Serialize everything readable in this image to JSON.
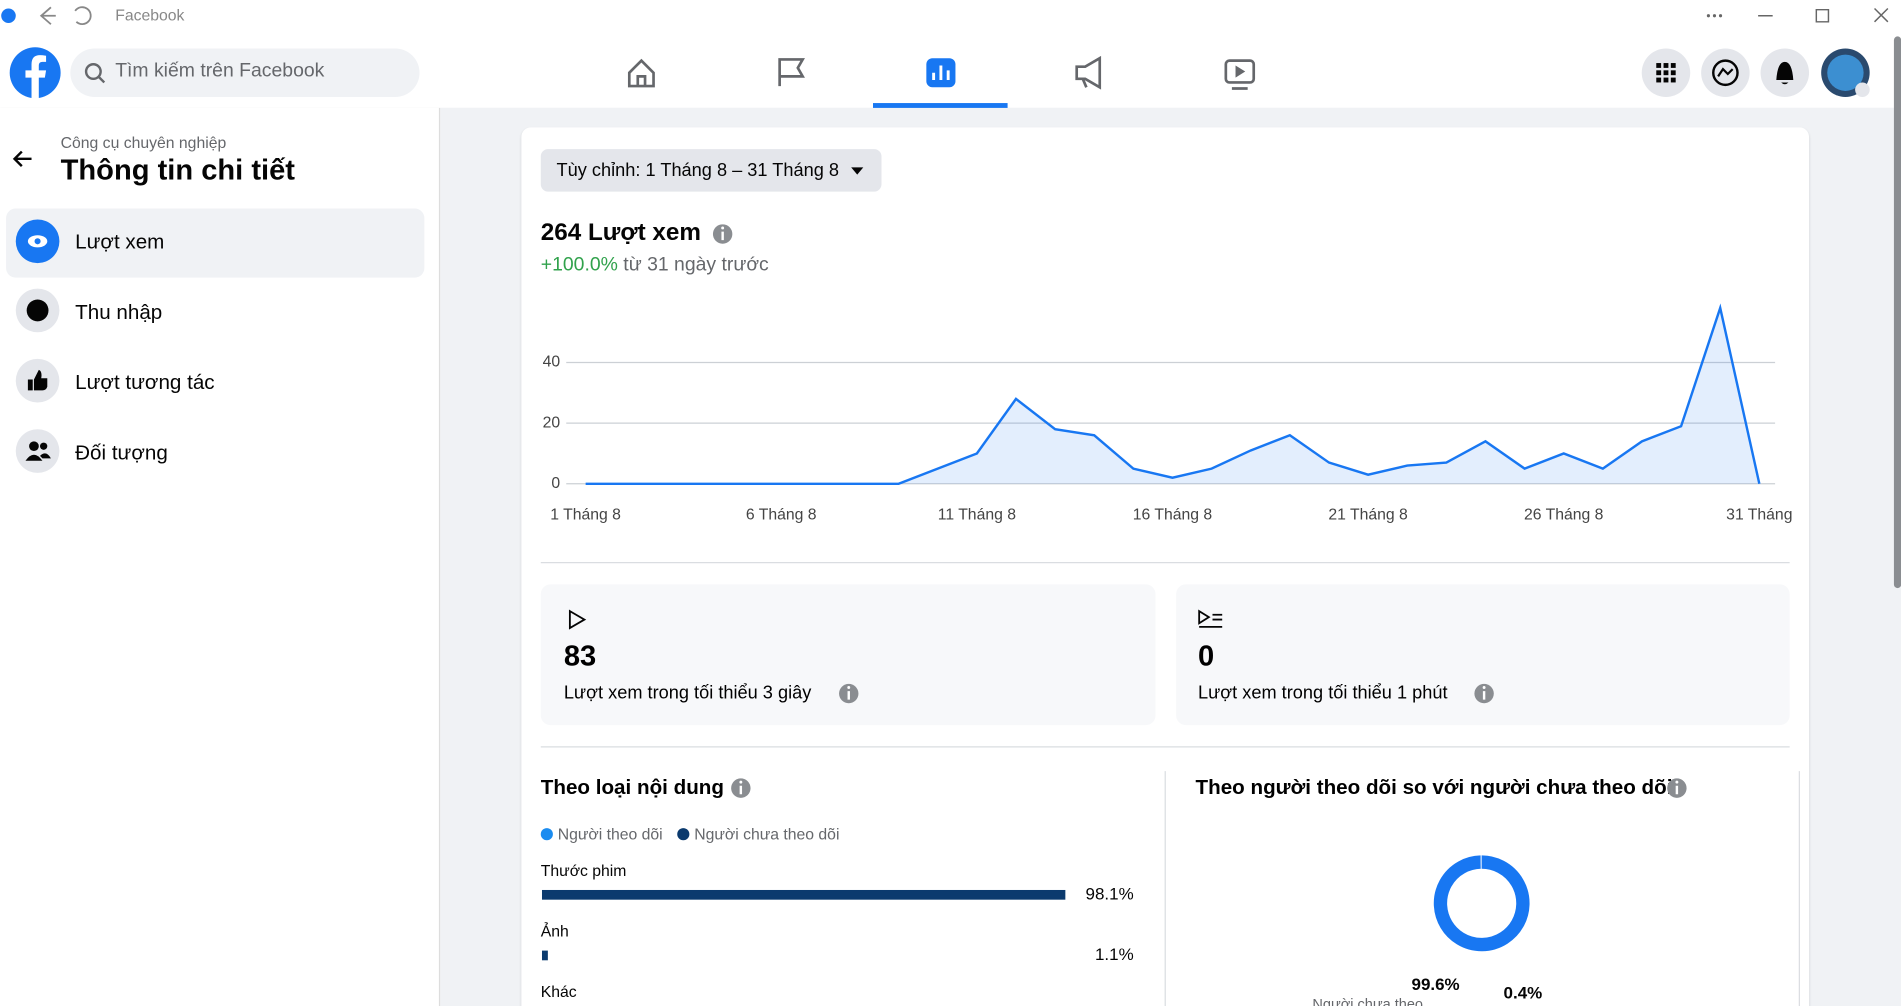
{
  "browser": {
    "title": "Facebook"
  },
  "search": {
    "placeholder": "Tìm kiếm trên Facebook"
  },
  "sidebar": {
    "subtitle": "Công cụ chuyên nghiệp",
    "title": "Thông tin chi tiết",
    "items": [
      "Lượt xem",
      "Thu nhập",
      "Lượt tương tác",
      "Đối tượng"
    ]
  },
  "date_filter": "Tùy chỉnh: 1 Tháng 8 – 31 Tháng 8",
  "summary": {
    "headline": "264 Lượt xem",
    "change": "+100.0%",
    "change_note": "từ 31 ngày trước"
  },
  "stats": [
    {
      "value": 83,
      "label": "Lượt xem trong tối thiểu 3 giây"
    },
    {
      "value": 0,
      "label": "Lượt xem trong tối thiểu 1 phút"
    }
  ],
  "chart_data": [
    {
      "type": "line",
      "color": "#1877f2",
      "grid": true,
      "ylim": [
        0,
        60
      ],
      "yticks": [
        0,
        20,
        40
      ],
      "x": [
        "1 Tháng 8",
        null,
        null,
        null,
        null,
        "6 Tháng 8",
        null,
        null,
        null,
        null,
        "11 Tháng 8",
        null,
        null,
        null,
        null,
        "16 Tháng 8",
        null,
        null,
        null,
        null,
        "21 Tháng 8",
        null,
        null,
        null,
        null,
        "26 Tháng 8",
        null,
        null,
        null,
        null,
        "31 Tháng"
      ],
      "values": [
        0,
        0,
        0,
        0,
        0,
        0,
        0,
        0,
        0,
        5,
        10,
        28,
        18,
        16,
        5,
        2,
        5,
        11,
        16,
        7,
        3,
        6,
        7,
        14,
        5,
        10,
        5,
        14,
        19,
        58,
        0
      ]
    },
    {
      "type": "bar",
      "title": "Theo loại nội dung",
      "legend": [
        {
          "name": "Người theo dõi",
          "color": "#1b8cf0"
        },
        {
          "name": "Người chưa theo dõi",
          "color": "#0b3a6e"
        }
      ],
      "categories": [
        "Thước phim",
        "Ảnh",
        "Khác"
      ],
      "values": [
        98.1,
        1.1,
        null
      ],
      "value_labels": [
        "98.1%",
        "1.1%",
        null
      ],
      "color": "#0b3a6e",
      "xlim": [
        0,
        100
      ]
    },
    {
      "type": "pie",
      "title": "Theo người theo dõi so với người chưa theo dõi",
      "categories": [
        "Người chưa theo",
        null
      ],
      "values": [
        99.6,
        0.4
      ],
      "value_labels": [
        "99.6%",
        "0.4%"
      ],
      "colors": [
        "#1877f2",
        "#cfe2fc"
      ]
    }
  ]
}
